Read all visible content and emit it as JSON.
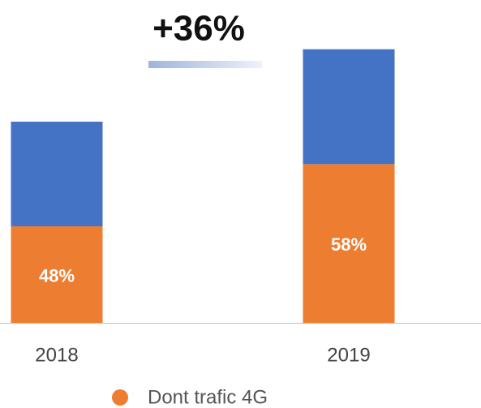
{
  "chart_data": {
    "type": "stacked_bar",
    "categories": [
      "2018",
      "2019"
    ],
    "series": [
      {
        "name": "Dont trafic 4G",
        "color": "#ed7d31",
        "values": [
          48,
          58
        ],
        "value_labels": [
          "48%",
          "58%"
        ]
      },
      {
        "color": "#4472c4",
        "values": [
          52,
          42
        ]
      }
    ],
    "annotation": {
      "value": 36,
      "label": "+36%"
    },
    "legend": "bottom"
  }
}
